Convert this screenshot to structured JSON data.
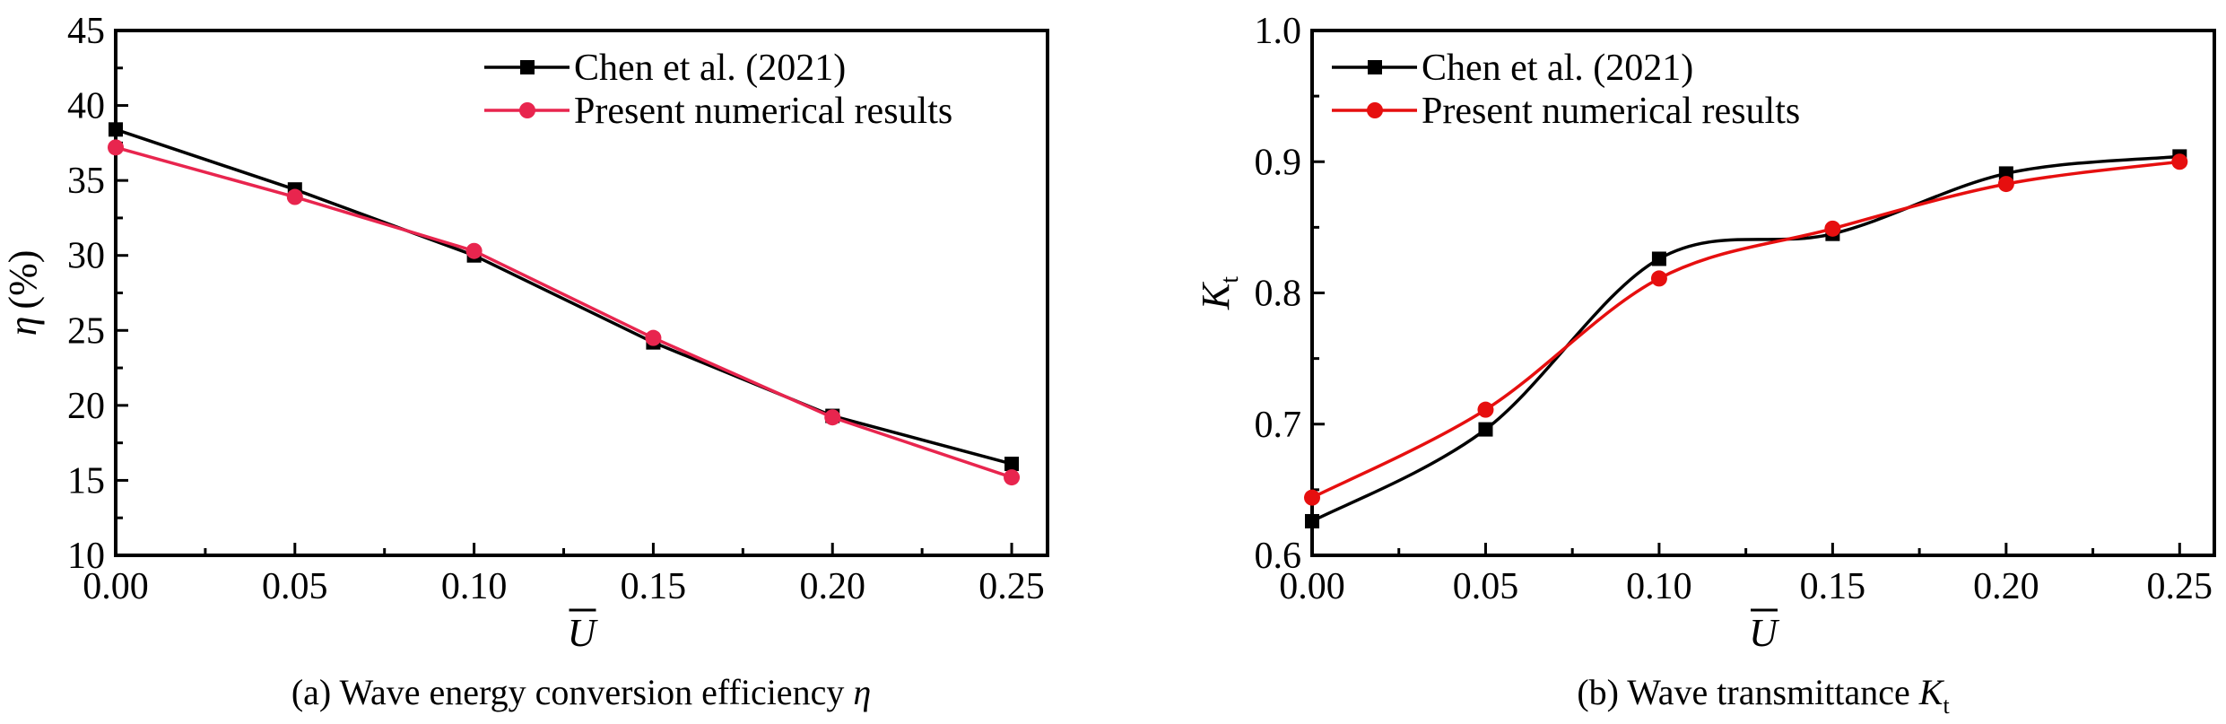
{
  "chart_data": [
    {
      "id": "a",
      "type": "line",
      "title": "",
      "caption": "(a) Wave energy conversion efficiency",
      "caption_symbol": "η",
      "xlabel": "U",
      "xlabel_overbar": true,
      "ylabel": "η (%)",
      "ylabel_symbol": "η",
      "ylabel_unit": "(%)",
      "xlim": [
        0,
        0.26
      ],
      "ylim": [
        10,
        45
      ],
      "xticks": [
        0.0,
        0.05,
        0.1,
        0.15,
        0.2,
        0.25
      ],
      "xtick_labels": [
        "0.00",
        "0.05",
        "0.10",
        "0.15",
        "0.20",
        "0.25"
      ],
      "yticks": [
        10,
        15,
        20,
        25,
        30,
        35,
        40,
        45
      ],
      "ytick_labels": [
        "10",
        "15",
        "20",
        "25",
        "30",
        "35",
        "40",
        "45"
      ],
      "grid": false,
      "legend_position": "top-right",
      "smooth": false,
      "x": [
        0.0,
        0.05,
        0.1,
        0.15,
        0.2,
        0.25
      ],
      "series": [
        {
          "name": "Chen et al. (2021)",
          "marker": "square",
          "color": "#000000",
          "values": [
            38.4,
            34.4,
            30.0,
            24.2,
            19.3,
            16.1
          ]
        },
        {
          "name": "Present numerical results",
          "marker": "circle",
          "color": "#e8254e",
          "values": [
            37.2,
            33.9,
            30.3,
            24.5,
            19.2,
            15.2
          ]
        }
      ]
    },
    {
      "id": "b",
      "type": "line",
      "title": "",
      "caption": "(b) Wave transmittance",
      "caption_symbol": "K",
      "caption_subscript": "t",
      "xlabel": "U",
      "xlabel_overbar": true,
      "ylabel": "Kt",
      "ylabel_symbol": "K",
      "ylabel_subscript": "t",
      "xlim": [
        0,
        0.26
      ],
      "ylim": [
        0.6,
        1.0
      ],
      "xticks": [
        0.0,
        0.05,
        0.1,
        0.15,
        0.2,
        0.25
      ],
      "xtick_labels": [
        "0.00",
        "0.05",
        "0.10",
        "0.15",
        "0.20",
        "0.25"
      ],
      "yticks": [
        0.6,
        0.7,
        0.8,
        0.9,
        1.0
      ],
      "ytick_labels": [
        "0.6",
        "0.7",
        "0.8",
        "0.9",
        "1.0"
      ],
      "grid": false,
      "legend_position": "top-left",
      "smooth": true,
      "x": [
        0.0,
        0.05,
        0.1,
        0.15,
        0.2,
        0.25
      ],
      "series": [
        {
          "name": "Chen et al. (2021)",
          "marker": "square",
          "color": "#000000",
          "values": [
            0.626,
            0.696,
            0.826,
            0.845,
            0.891,
            0.904
          ]
        },
        {
          "name": "Present numerical results",
          "marker": "circle",
          "color": "#e60f0f",
          "values": [
            0.644,
            0.711,
            0.811,
            0.849,
            0.883,
            0.9
          ]
        }
      ]
    }
  ]
}
